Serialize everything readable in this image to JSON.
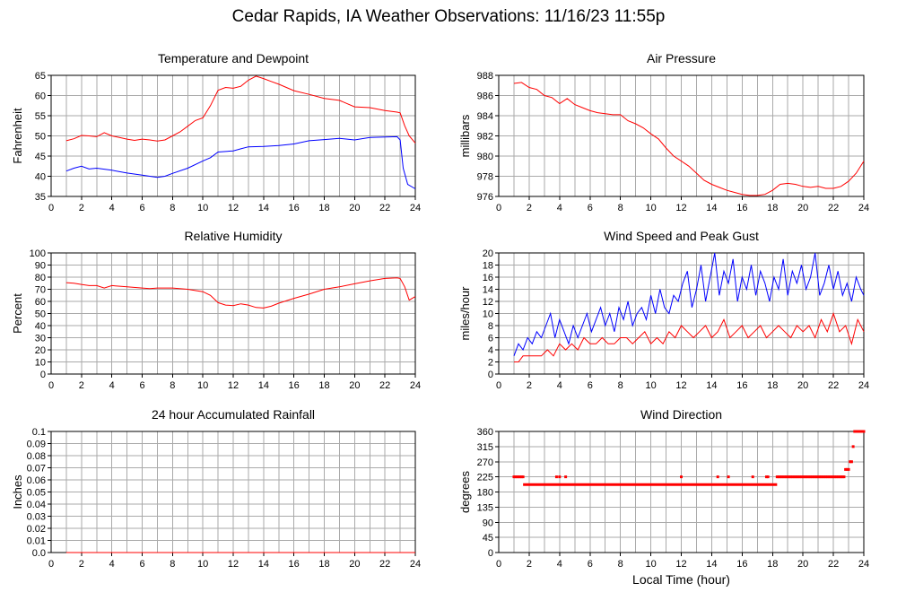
{
  "page": {
    "title": "Cedar Rapids, IA Weather Observations: 11/16/23 11:55p"
  },
  "colors": {
    "primary_series": "#ff0000",
    "secondary_series": "#0000ff",
    "grid": "#aaaaaa",
    "axis": "#000000"
  },
  "chart_data": [
    {
      "id": "temperature-dewpoint",
      "type": "line",
      "title": "Temperature and Dewpoint",
      "xlabel": "",
      "ylabel": "Fahrenheit",
      "xlim": [
        0,
        24
      ],
      "ylim": [
        35,
        65
      ],
      "xticks": [
        2,
        4,
        6,
        8,
        10,
        12,
        14,
        16,
        18,
        20,
        22,
        24
      ],
      "yticks": [
        35,
        40,
        45,
        50,
        55,
        60,
        65
      ],
      "grid": true,
      "series": [
        {
          "color": "#ff0000",
          "x": [
            1.0,
            1.5,
            2.0,
            2.5,
            3.0,
            3.5,
            4.0,
            4.5,
            5.0,
            5.5,
            6.0,
            6.5,
            7.0,
            7.5,
            8.0,
            8.5,
            9.0,
            9.5,
            10.0,
            10.5,
            11.0,
            11.5,
            12.0,
            12.5,
            13.0,
            13.5,
            14.0,
            14.5,
            15.0,
            16.0,
            17.0,
            18.0,
            19.0,
            20.0,
            21.0,
            22.0,
            22.8,
            23.0,
            23.3,
            23.6,
            24.0
          ],
          "y": [
            48.8,
            49.3,
            50.1,
            50.0,
            49.8,
            50.8,
            50.0,
            49.6,
            49.2,
            48.9,
            49.2,
            49.0,
            48.7,
            49.0,
            50.0,
            51.0,
            52.4,
            53.8,
            54.5,
            57.5,
            61.3,
            62.0,
            61.8,
            62.3,
            63.8,
            64.8,
            64.2,
            63.5,
            62.8,
            61.2,
            60.3,
            59.3,
            58.8,
            57.2,
            57.0,
            56.3,
            55.9,
            55.7,
            52.5,
            50.0,
            48.2
          ]
        },
        {
          "color": "#0000ff",
          "x": [
            1.0,
            1.5,
            2.0,
            2.5,
            3.0,
            4.0,
            5.0,
            6.0,
            6.5,
            7.0,
            7.5,
            8.0,
            9.0,
            10.0,
            10.5,
            11.0,
            12.0,
            12.5,
            13.0,
            14.0,
            15.0,
            16.0,
            17.0,
            18.0,
            19.0,
            20.0,
            21.0,
            22.0,
            22.8,
            23.0,
            23.2,
            23.5,
            24.0
          ],
          "y": [
            41.3,
            42.0,
            42.5,
            41.8,
            42.0,
            41.5,
            40.8,
            40.3,
            40.0,
            39.7,
            40.0,
            40.7,
            42.0,
            43.8,
            44.6,
            46.0,
            46.3,
            46.8,
            47.3,
            47.4,
            47.6,
            48.0,
            48.8,
            49.1,
            49.4,
            49.0,
            49.6,
            49.7,
            49.8,
            49.0,
            42.0,
            38.0,
            36.9
          ]
        }
      ]
    },
    {
      "id": "air-pressure",
      "type": "line",
      "title": "Air Pressure",
      "xlabel": "",
      "ylabel": "millibars",
      "xlim": [
        0,
        24
      ],
      "ylim": [
        976,
        988
      ],
      "xticks": [
        2,
        4,
        6,
        8,
        10,
        12,
        14,
        16,
        18,
        20,
        22,
        24
      ],
      "yticks": [
        976,
        978,
        980,
        982,
        984,
        986,
        988
      ],
      "grid": true,
      "series": [
        {
          "color": "#ff0000",
          "x": [
            1.0,
            1.5,
            2.0,
            2.5,
            3.0,
            3.5,
            4.0,
            4.5,
            5.0,
            5.5,
            6.0,
            6.5,
            7.0,
            7.5,
            8.0,
            8.5,
            9.0,
            9.5,
            10.0,
            10.5,
            11.0,
            11.5,
            12.0,
            12.5,
            13.0,
            13.5,
            14.0,
            14.5,
            15.0,
            15.5,
            16.0,
            16.5,
            17.0,
            17.5,
            18.0,
            18.5,
            19.0,
            19.5,
            20.0,
            20.5,
            21.0,
            21.5,
            22.0,
            22.5,
            23.0,
            23.5,
            24.0
          ],
          "y": [
            987.2,
            987.3,
            986.8,
            986.6,
            986.0,
            985.8,
            985.2,
            985.7,
            985.1,
            984.8,
            984.5,
            984.3,
            984.2,
            984.1,
            984.1,
            983.5,
            983.2,
            982.8,
            982.2,
            981.7,
            980.8,
            980.0,
            979.5,
            979.0,
            978.3,
            977.6,
            977.2,
            976.9,
            976.6,
            976.4,
            976.2,
            976.1,
            976.1,
            976.2,
            976.6,
            977.2,
            977.3,
            977.2,
            977.0,
            976.9,
            977.0,
            976.8,
            976.8,
            977.0,
            977.5,
            978.3,
            979.5
          ]
        }
      ]
    },
    {
      "id": "relative-humidity",
      "type": "line",
      "title": "Relative Humidity",
      "xlabel": "",
      "ylabel": "Percent",
      "xlim": [
        0,
        24
      ],
      "ylim": [
        0,
        100
      ],
      "xticks": [
        2,
        4,
        6,
        8,
        10,
        12,
        14,
        16,
        18,
        20,
        22,
        24
      ],
      "yticks": [
        0,
        10,
        20,
        30,
        40,
        50,
        60,
        70,
        80,
        90,
        100
      ],
      "grid": true,
      "series": [
        {
          "color": "#ff0000",
          "x": [
            1.0,
            1.5,
            2.0,
            2.5,
            3.0,
            3.5,
            4.0,
            5.0,
            6.0,
            6.5,
            7.0,
            8.0,
            9.0,
            9.5,
            10.0,
            10.5,
            11.0,
            11.5,
            12.0,
            12.5,
            13.0,
            13.5,
            14.0,
            14.5,
            15.0,
            16.0,
            17.0,
            18.0,
            19.0,
            20.0,
            21.0,
            22.0,
            22.8,
            23.0,
            23.3,
            23.6,
            24.0
          ],
          "y": [
            75.5,
            75.0,
            74.0,
            73.0,
            73.0,
            71.0,
            73.0,
            72.0,
            71.0,
            70.5,
            71.0,
            71.0,
            70.0,
            69.0,
            68.0,
            65.0,
            59.0,
            57.0,
            56.5,
            58.0,
            57.0,
            55.0,
            54.5,
            56.0,
            58.5,
            62.5,
            66.0,
            70.0,
            72.0,
            74.5,
            77.0,
            79.0,
            79.5,
            79.0,
            72.0,
            61.0,
            64.0
          ]
        }
      ]
    },
    {
      "id": "wind-speed-gust",
      "type": "line",
      "title": "Wind Speed and Peak Gust",
      "xlabel": "",
      "ylabel": "miles/hour",
      "xlim": [
        0,
        24
      ],
      "ylim": [
        0,
        20
      ],
      "xticks": [
        2,
        4,
        6,
        8,
        10,
        12,
        14,
        16,
        18,
        20,
        22,
        24
      ],
      "yticks": [
        0,
        2,
        4,
        6,
        8,
        10,
        12,
        14,
        16,
        18,
        20
      ],
      "grid": true,
      "series": [
        {
          "color": "#0000ff",
          "x": [
            1.0,
            1.3,
            1.6,
            1.9,
            2.2,
            2.5,
            2.8,
            3.1,
            3.4,
            3.7,
            4.0,
            4.3,
            4.6,
            4.9,
            5.2,
            5.5,
            5.8,
            6.1,
            6.4,
            6.7,
            7.0,
            7.3,
            7.6,
            7.9,
            8.2,
            8.5,
            8.8,
            9.1,
            9.4,
            9.7,
            10.0,
            10.3,
            10.6,
            10.9,
            11.2,
            11.5,
            11.8,
            12.1,
            12.4,
            12.7,
            13.0,
            13.3,
            13.6,
            13.9,
            14.2,
            14.5,
            14.8,
            15.1,
            15.4,
            15.7,
            16.0,
            16.3,
            16.6,
            16.9,
            17.2,
            17.5,
            17.8,
            18.1,
            18.4,
            18.7,
            19.0,
            19.3,
            19.6,
            19.9,
            20.2,
            20.5,
            20.8,
            21.1,
            21.4,
            21.7,
            22.0,
            22.3,
            22.6,
            22.9,
            23.2,
            23.5,
            23.8,
            24.0
          ],
          "y": [
            3,
            5,
            4,
            6,
            5,
            7,
            6,
            8,
            10,
            6,
            9,
            7,
            5,
            8,
            6,
            8,
            10,
            7,
            9,
            11,
            8,
            10,
            7,
            11,
            9,
            12,
            8,
            10,
            11,
            9,
            13,
            10,
            14,
            11,
            10,
            13,
            12,
            15,
            17,
            11,
            14,
            18,
            12,
            16,
            20,
            13,
            17,
            15,
            19,
            12,
            16,
            14,
            18,
            13,
            17,
            15,
            12,
            16,
            14,
            19,
            13,
            17,
            15,
            18,
            14,
            16,
            20,
            13,
            15,
            18,
            14,
            17,
            13,
            15,
            12,
            16,
            14,
            13
          ]
        },
        {
          "color": "#ff0000",
          "x": [
            1.0,
            1.3,
            1.6,
            2.0,
            2.4,
            2.8,
            3.2,
            3.6,
            4.0,
            4.4,
            4.8,
            5.2,
            5.6,
            6.0,
            6.4,
            6.8,
            7.2,
            7.6,
            8.0,
            8.4,
            8.8,
            9.2,
            9.6,
            10.0,
            10.4,
            10.8,
            11.2,
            11.6,
            12.0,
            12.4,
            12.8,
            13.2,
            13.6,
            14.0,
            14.4,
            14.8,
            15.2,
            15.6,
            16.0,
            16.4,
            16.8,
            17.2,
            17.6,
            18.0,
            18.4,
            18.8,
            19.2,
            19.6,
            20.0,
            20.4,
            20.8,
            21.2,
            21.6,
            22.0,
            22.4,
            22.8,
            23.2,
            23.6,
            24.0
          ],
          "y": [
            2,
            2,
            3,
            3,
            3,
            3,
            4,
            3,
            5,
            4,
            5,
            4,
            6,
            5,
            5,
            6,
            5,
            5,
            6,
            6,
            5,
            6,
            7,
            5,
            6,
            5,
            7,
            6,
            8,
            7,
            6,
            7,
            8,
            6,
            7,
            9,
            6,
            7,
            8,
            6,
            7,
            8,
            6,
            7,
            8,
            7,
            6,
            8,
            7,
            8,
            6,
            9,
            7,
            10,
            7,
            8,
            5,
            9,
            7
          ]
        }
      ]
    },
    {
      "id": "rainfall",
      "type": "line",
      "title": "24 hour Accumulated Rainfall",
      "xlabel": "",
      "ylabel": "Inches",
      "xlim": [
        0,
        24
      ],
      "ylim": [
        0,
        0.1
      ],
      "xticks": [
        2,
        4,
        6,
        8,
        10,
        12,
        14,
        16,
        18,
        20,
        22,
        24
      ],
      "yticks": [
        0.0,
        0.01,
        0.02,
        0.03,
        0.04,
        0.05,
        0.06,
        0.07,
        0.08,
        0.09,
        0.1
      ],
      "ytick_labels": [
        "0.0",
        "0.01",
        "0.02",
        "0.03",
        "0.04",
        "0.05",
        "0.06",
        "0.07",
        "0.08",
        "0.09",
        "0.1"
      ],
      "grid": true,
      "series": [
        {
          "color": "#ff0000",
          "x": [
            1.0,
            24.0
          ],
          "y": [
            0,
            0
          ]
        }
      ]
    },
    {
      "id": "wind-direction",
      "type": "scatter",
      "title": "Wind Direction",
      "xlabel": "Local Time (hour)",
      "ylabel": "degrees",
      "xlim": [
        0,
        24
      ],
      "ylim": [
        0,
        360
      ],
      "xticks": [
        2,
        4,
        6,
        8,
        10,
        12,
        14,
        16,
        18,
        20,
        22,
        24
      ],
      "yticks": [
        0,
        45,
        90,
        135,
        180,
        225,
        270,
        315,
        360
      ],
      "grid": true,
      "series": [
        {
          "color": "#ff0000",
          "x": [
            1.0,
            1.1,
            1.2,
            1.3,
            1.4,
            1.5,
            1.6,
            3.8,
            4.0,
            4.4,
            12.0,
            14.4,
            15.1,
            16.7,
            17.6,
            17.7,
            18.3,
            18.4,
            18.5,
            18.6,
            18.7,
            18.8,
            18.9,
            19.0,
            19.1,
            19.2,
            19.3,
            19.4,
            19.5,
            19.6,
            19.7,
            19.8,
            19.9,
            20.0,
            20.1,
            20.2,
            20.3,
            20.4,
            20.5,
            20.6,
            20.7,
            20.8,
            20.9,
            21.0,
            21.1,
            21.2,
            21.3,
            21.4,
            21.5,
            21.6,
            21.7,
            21.8,
            21.9,
            22.0,
            22.1,
            22.2,
            22.3,
            22.4,
            22.5,
            22.6,
            22.7,
            22.8,
            22.9,
            23.0,
            23.1,
            23.2,
            23.3,
            23.4,
            23.5,
            23.6,
            23.7,
            23.8,
            23.9,
            24.0
          ],
          "y": [
            225,
            225,
            225,
            225,
            225,
            225,
            225,
            225,
            225,
            225,
            225,
            225,
            225,
            225,
            225,
            225,
            225,
            225,
            225,
            225,
            225,
            225,
            225,
            225,
            225,
            225,
            225,
            225,
            225,
            225,
            225,
            225,
            225,
            225,
            225,
            225,
            225,
            225,
            225,
            225,
            225,
            225,
            225,
            225,
            225,
            225,
            225,
            225,
            225,
            225,
            225,
            225,
            225,
            225,
            225,
            225,
            225,
            225,
            225,
            225,
            225,
            247,
            247,
            247,
            270,
            270,
            315,
            360,
            360,
            360,
            360,
            360,
            360,
            360
          ]
        },
        {
          "color": "#ff0000",
          "segment": true,
          "x": [
            1.6,
            18.3
          ],
          "y": [
            202,
            202
          ]
        }
      ]
    }
  ]
}
